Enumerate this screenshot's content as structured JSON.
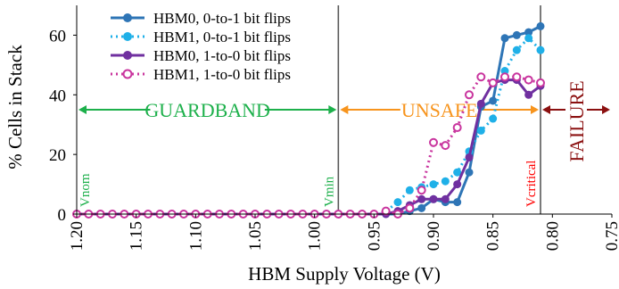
{
  "chart_data": {
    "type": "line",
    "xlabel": "HBM Supply Voltage (V)",
    "ylabel": "% Cells in Stack",
    "xlim": [
      1.2,
      0.75
    ],
    "ylim": [
      0,
      70
    ],
    "x_ticks": [
      "1.20",
      "1.15",
      "1.10",
      "1.05",
      "1.00",
      "0.95",
      "0.90",
      "0.85",
      "0.80",
      "0.75"
    ],
    "y_ticks": [
      "0",
      "20",
      "40",
      "60"
    ],
    "x_tick_values": [
      1.2,
      1.15,
      1.1,
      1.05,
      1.0,
      0.95,
      0.9,
      0.85,
      0.8,
      0.75
    ],
    "y_tick_values": [
      0,
      20,
      40,
      60
    ],
    "legend": "top-center",
    "series": [
      {
        "name": "HBM0, 0-to-1 bit flips",
        "color": "#2e75b6",
        "style": "solid",
        "marker": "filled",
        "x": [
          1.2,
          1.19,
          1.18,
          1.17,
          1.16,
          1.15,
          1.14,
          1.13,
          1.12,
          1.11,
          1.1,
          1.09,
          1.08,
          1.07,
          1.06,
          1.05,
          1.04,
          1.03,
          1.02,
          1.01,
          1.0,
          0.99,
          0.98,
          0.97,
          0.96,
          0.95,
          0.94,
          0.93,
          0.92,
          0.91,
          0.9,
          0.89,
          0.88,
          0.87,
          0.86,
          0.85,
          0.84,
          0.83,
          0.82,
          0.81
        ],
        "y": [
          0,
          0,
          0,
          0,
          0,
          0,
          0,
          0,
          0,
          0,
          0,
          0,
          0,
          0,
          0,
          0,
          0,
          0,
          0,
          0,
          0,
          0,
          0,
          0,
          0,
          0,
          0,
          0,
          1,
          2,
          5,
          4,
          4,
          14,
          36,
          38,
          59,
          60,
          61,
          63
        ]
      },
      {
        "name": "HBM1, 0-to-1 bit flips",
        "color": "#1fb0e8",
        "style": "dotted",
        "marker": "filled",
        "x": [
          1.2,
          1.19,
          1.18,
          1.17,
          1.16,
          1.15,
          1.14,
          1.13,
          1.12,
          1.11,
          1.1,
          1.09,
          1.08,
          1.07,
          1.06,
          1.05,
          1.04,
          1.03,
          1.02,
          1.01,
          1.0,
          0.99,
          0.98,
          0.97,
          0.96,
          0.95,
          0.94,
          0.93,
          0.92,
          0.91,
          0.9,
          0.89,
          0.88,
          0.87,
          0.86,
          0.85,
          0.84,
          0.83,
          0.82,
          0.81
        ],
        "y": [
          0,
          0,
          0,
          0,
          0,
          0,
          0,
          0,
          0,
          0,
          0,
          0,
          0,
          0,
          0,
          0,
          0,
          0,
          0,
          0,
          0,
          0,
          0,
          0,
          0,
          0,
          1,
          4,
          8,
          9,
          10,
          11,
          14,
          21,
          28,
          32,
          48,
          55,
          59,
          55
        ]
      },
      {
        "name": "HBM0, 1-to-0 bit flips",
        "color": "#7030a0",
        "style": "solid",
        "marker": "filled",
        "x": [
          1.2,
          1.19,
          1.18,
          1.17,
          1.16,
          1.15,
          1.14,
          1.13,
          1.12,
          1.11,
          1.1,
          1.09,
          1.08,
          1.07,
          1.06,
          1.05,
          1.04,
          1.03,
          1.02,
          1.01,
          1.0,
          0.99,
          0.98,
          0.97,
          0.96,
          0.95,
          0.94,
          0.93,
          0.92,
          0.91,
          0.9,
          0.89,
          0.88,
          0.87,
          0.86,
          0.85,
          0.84,
          0.83,
          0.82,
          0.81
        ],
        "y": [
          0,
          0,
          0,
          0,
          0,
          0,
          0,
          0,
          0,
          0,
          0,
          0,
          0,
          0,
          0,
          0,
          0,
          0,
          0,
          0,
          0,
          0,
          0,
          0,
          0,
          0,
          0,
          1,
          3,
          5,
          5,
          5,
          10,
          19,
          37,
          44,
          45,
          45,
          40,
          43
        ]
      },
      {
        "name": "HBM1, 1-to-0 bit flips",
        "color": "#c9359e",
        "style": "dotted",
        "marker": "open",
        "x": [
          1.2,
          1.19,
          1.18,
          1.17,
          1.16,
          1.15,
          1.14,
          1.13,
          1.12,
          1.11,
          1.1,
          1.09,
          1.08,
          1.07,
          1.06,
          1.05,
          1.04,
          1.03,
          1.02,
          1.01,
          1.0,
          0.99,
          0.98,
          0.97,
          0.96,
          0.95,
          0.94,
          0.93,
          0.92,
          0.91,
          0.9,
          0.89,
          0.88,
          0.87,
          0.86,
          0.85,
          0.84,
          0.83,
          0.82,
          0.81
        ],
        "y": [
          0,
          0,
          0,
          0,
          0,
          0,
          0,
          0,
          0,
          0,
          0,
          0,
          0,
          0,
          0,
          0,
          0,
          0,
          0,
          0,
          0,
          0,
          0,
          0,
          0,
          0,
          1,
          0,
          2,
          8,
          24,
          23,
          29,
          40,
          46,
          44,
          46,
          46,
          45,
          44
        ]
      }
    ],
    "vlines": [
      {
        "x": 0.98,
        "color": "#595959"
      },
      {
        "x": 0.81,
        "color": "#595959"
      }
    ],
    "regions": [
      {
        "label": "GUARDBAND",
        "from": 1.2,
        "to": 0.98,
        "y": 35,
        "color": "#1db04b"
      },
      {
        "label": "UNSAFE",
        "from": 0.98,
        "to": 0.81,
        "y": 35,
        "color": "#f7941d"
      },
      {
        "label": "FAILURE",
        "from": 0.81,
        "to": 0.75,
        "y": 35,
        "color": "#8b1010"
      }
    ],
    "annotations": [
      {
        "text": "Vnom",
        "x": 1.2,
        "color": "#1db04b"
      },
      {
        "text": "Vmin",
        "x": 0.98,
        "color": "#1db04b"
      },
      {
        "text": "Vcritical",
        "x": 0.81,
        "color": "#ff0000"
      }
    ]
  }
}
